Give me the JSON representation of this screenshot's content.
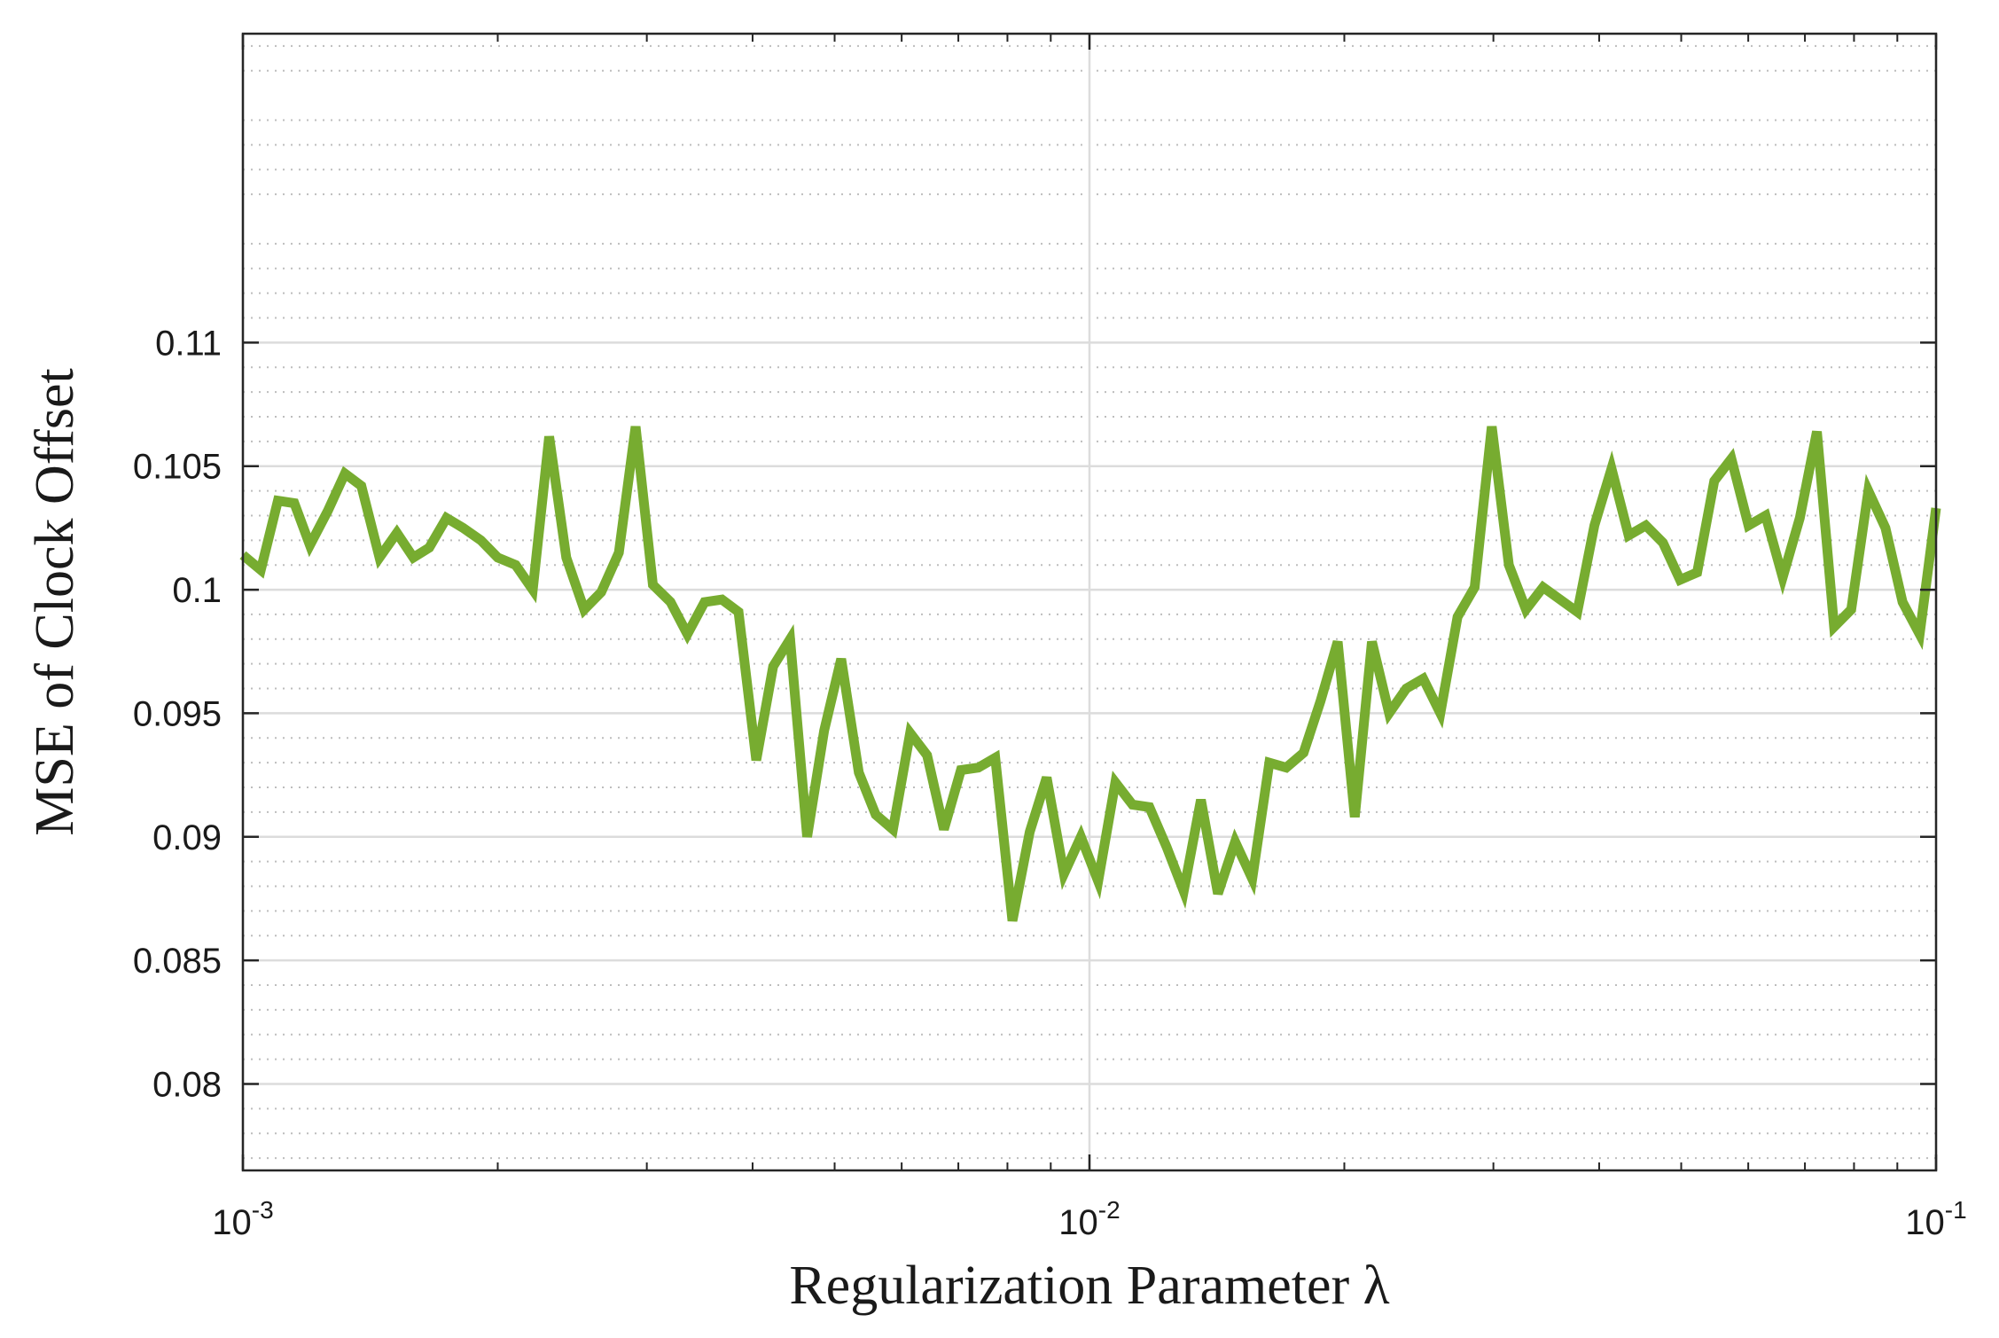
{
  "colors": {
    "line": "#77AC30",
    "axis": "#262626",
    "grid_major": "#dcdcdc",
    "grid_minor": "#bdbdbd"
  },
  "chart_data": {
    "type": "line",
    "title": "",
    "xlabel": "Regularization Parameter λ",
    "ylabel": "MSE of Clock Offset",
    "xscale": "log",
    "xlim": [
      0.001,
      0.1
    ],
    "ylim": [
      0.0765,
      0.1225
    ],
    "xticks": [
      {
        "value": 0.001,
        "base": "10",
        "exp": "-3"
      },
      {
        "value": 0.01,
        "base": "10",
        "exp": "-2"
      },
      {
        "value": 0.1,
        "base": "10",
        "exp": "-1"
      }
    ],
    "yticks": [
      {
        "value": 0.08,
        "label": "0.08"
      },
      {
        "value": 0.085,
        "label": "0.085"
      },
      {
        "value": 0.09,
        "label": "0.09"
      },
      {
        "value": 0.095,
        "label": "0.095"
      },
      {
        "value": 0.1,
        "label": "0.1"
      },
      {
        "value": 0.105,
        "label": "0.105"
      },
      {
        "value": 0.11,
        "label": "0.11"
      }
    ],
    "grid": "major and minor",
    "series": [
      {
        "x": [
          0.001,
          0.00105,
          0.0011,
          0.00115,
          0.0012,
          0.00126,
          0.00132,
          0.00138,
          0.00145,
          0.00152,
          0.00159,
          0.00166,
          0.00174,
          0.00182,
          0.00191,
          0.002,
          0.0021,
          0.0022,
          0.0023,
          0.00241,
          0.00253,
          0.00265,
          0.00278,
          0.00291,
          0.00305,
          0.0032,
          0.00335,
          0.00351,
          0.00368,
          0.00385,
          0.00404,
          0.00423,
          0.00443,
          0.00464,
          0.00486,
          0.00509,
          0.00534,
          0.00559,
          0.00586,
          0.00614,
          0.00643,
          0.00673,
          0.00705,
          0.00739,
          0.00774,
          0.00811,
          0.0085,
          0.0089,
          0.00933,
          0.00977,
          0.01024,
          0.01073,
          0.01124,
          0.01177,
          0.01233,
          0.01292,
          0.01354,
          0.01418,
          0.01486,
          0.01557,
          0.01631,
          0.01708,
          0.0179,
          0.01875,
          0.01964,
          0.02058,
          0.02156,
          0.02259,
          0.02367,
          0.02479,
          0.02597,
          0.02721,
          0.02851,
          0.02987,
          0.03129,
          0.03278,
          0.03434,
          0.03598,
          0.03769,
          0.03949,
          0.04137,
          0.04334,
          0.04541,
          0.04757,
          0.04984,
          0.05221,
          0.0547,
          0.05731,
          0.06004,
          0.0629,
          0.0659,
          0.06904,
          0.07233,
          0.07578,
          0.07939,
          0.08317,
          0.08714,
          0.09129,
          0.09564,
          0.1
        ],
        "y": [
          0.1014,
          0.1008,
          0.1036,
          0.1035,
          0.1018,
          0.1032,
          0.1047,
          0.1042,
          0.1013,
          0.1023,
          0.1013,
          0.1017,
          0.1029,
          0.1025,
          0.102,
          0.1013,
          0.101,
          0.1,
          0.1062,
          0.1013,
          0.0992,
          0.0999,
          0.1015,
          0.1066,
          0.1002,
          0.0995,
          0.0982,
          0.0995,
          0.0996,
          0.0991,
          0.0931,
          0.0969,
          0.098,
          0.09,
          0.0943,
          0.0972,
          0.0926,
          0.0909,
          0.0903,
          0.0942,
          0.0933,
          0.0903,
          0.0927,
          0.0928,
          0.0932,
          0.0866,
          0.0902,
          0.0924,
          0.0885,
          0.09,
          0.0882,
          0.0922,
          0.0913,
          0.0912,
          0.0896,
          0.0878,
          0.0915,
          0.0877,
          0.0898,
          0.0883,
          0.093,
          0.0928,
          0.0934,
          0.0955,
          0.0979,
          0.0908,
          0.0979,
          0.095,
          0.096,
          0.0964,
          0.095,
          0.0989,
          0.1001,
          0.1066,
          0.101,
          0.0992,
          0.1001,
          0.0996,
          0.0991,
          0.1026,
          0.1049,
          0.1022,
          0.1026,
          0.1019,
          0.1004,
          0.1007,
          0.1044,
          0.1053,
          0.1026,
          0.103,
          0.1005,
          0.1029,
          0.1064,
          0.0985,
          0.0992,
          0.104,
          0.1025,
          0.0995,
          0.0982,
          0.1033
        ]
      }
    ]
  }
}
